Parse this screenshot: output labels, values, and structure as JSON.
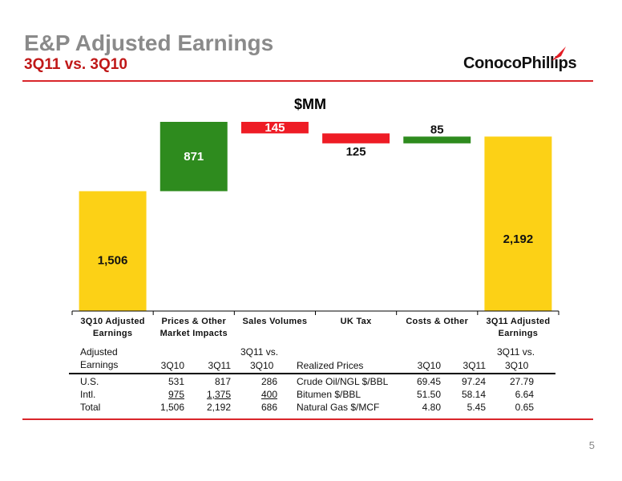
{
  "header": {
    "title": "E&P Adjusted Earnings",
    "subtitle": "3Q11 vs. 3Q10",
    "logo_text": "ConocoPhillips",
    "page_number": "5"
  },
  "colors": {
    "yellow": "#fcd116",
    "green": "#2e8b1e",
    "red": "#ee1c25",
    "accent_line": "#d9262b"
  },
  "chart_data": {
    "type": "bar",
    "subtype": "waterfall",
    "title": "$MM",
    "categories": [
      [
        "3Q10 Adjusted",
        "Earnings"
      ],
      [
        "Prices & Other",
        "Market Impacts"
      ],
      [
        "Sales Volumes"
      ],
      [
        "UK Tax"
      ],
      [
        "Costs & Other"
      ],
      [
        "3Q11 Adjusted",
        "Earnings"
      ]
    ],
    "bars": [
      {
        "kind": "total",
        "start": 0,
        "end": 1506,
        "label": "1,506",
        "color": "yellow"
      },
      {
        "kind": "increase",
        "start": 1506,
        "end": 2377,
        "label": "871",
        "color": "green"
      },
      {
        "kind": "decrease",
        "start": 2377,
        "end": 2232,
        "label": "145",
        "color": "red"
      },
      {
        "kind": "decrease",
        "start": 2232,
        "end": 2107,
        "label": "125",
        "color": "red"
      },
      {
        "kind": "increase",
        "start": 2107,
        "end": 2192,
        "label": "85",
        "color": "green"
      },
      {
        "kind": "total",
        "start": 0,
        "end": 2192,
        "label": "2,192",
        "color": "yellow"
      }
    ],
    "ylim": [
      0,
      2377
    ]
  },
  "table_left": {
    "headers": [
      "Adjusted",
      "Earnings",
      "3Q10",
      "3Q11",
      "3Q11 vs.",
      "3Q10"
    ],
    "rows": [
      {
        "name": "U.S.",
        "q10": "531",
        "q11": "817",
        "diff": "286"
      },
      {
        "name": "Intl.",
        "q10": "975",
        "q11": "1,375",
        "diff": "400"
      },
      {
        "name": "Total",
        "q10": "1,506",
        "q11": "2,192",
        "diff": "686"
      }
    ]
  },
  "table_right": {
    "headers": [
      "Realized Prices",
      "3Q10",
      "3Q11",
      "3Q11 vs.",
      "3Q10"
    ],
    "rows": [
      {
        "name": "Crude Oil/NGL $/BBL",
        "q10": "69.45",
        "q11": "97.24",
        "diff": "27.79"
      },
      {
        "name": "Bitumen $/BBL",
        "q10": "51.50",
        "q11": "58.14",
        "diff": "6.64"
      },
      {
        "name": "Natural Gas $/MCF",
        "q10": "4.80",
        "q11": "5.45",
        "diff": "0.65"
      }
    ]
  }
}
